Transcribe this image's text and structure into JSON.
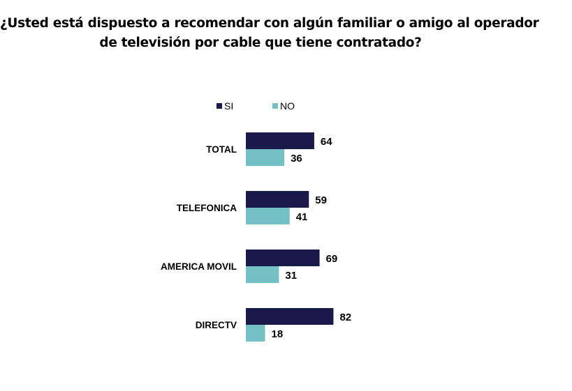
{
  "chart_data": {
    "type": "bar",
    "orientation": "horizontal",
    "title": "¿Usted está dispuesto a recomendar con algún familiar o amigo al operador de televisión por cable que tiene contratado?",
    "title_lines": [
      "¿Usted está dispuesto a recomendar con algún familiar o amigo al operador",
      "de televisión por cable que tiene contratado?"
    ],
    "categories": [
      "TOTAL",
      "TELEFONICA",
      "AMERICA MOVIL",
      "DIRECTV"
    ],
    "series": [
      {
        "name": "SI",
        "color": "#1a1a4a",
        "values": [
          64,
          59,
          69,
          82
        ]
      },
      {
        "name": "NO",
        "color": "#74c0c5",
        "values": [
          36,
          41,
          31,
          18
        ]
      }
    ],
    "xlabel": "",
    "ylabel": "",
    "xlim": [
      0,
      100
    ],
    "grid": false,
    "legend_position": "top",
    "data_labels": true
  }
}
